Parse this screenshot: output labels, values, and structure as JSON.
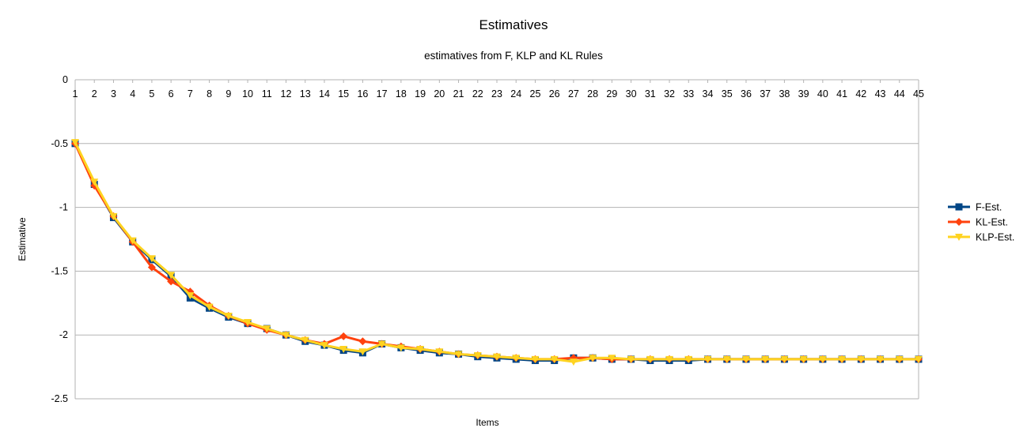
{
  "chart_data": {
    "type": "line",
    "title": "Estimatives",
    "subtitle": "estimatives from F, KLP and KL Rules",
    "xlabel": "Items",
    "ylabel": "Estimative",
    "ylim": [
      -2.5,
      0
    ],
    "yticks": [
      "0",
      "-0.5",
      "-1",
      "-1.5",
      "-2",
      "-2.5"
    ],
    "ytick_values": [
      0,
      -0.5,
      -1,
      -1.5,
      -2,
      -2.5
    ],
    "x": [
      1,
      2,
      3,
      4,
      5,
      6,
      7,
      8,
      9,
      10,
      11,
      12,
      13,
      14,
      15,
      16,
      17,
      18,
      19,
      20,
      21,
      22,
      23,
      24,
      25,
      26,
      27,
      28,
      29,
      30,
      31,
      32,
      33,
      34,
      35,
      36,
      37,
      38,
      39,
      40,
      41,
      42,
      43,
      44,
      45
    ],
    "grid": "horizontal",
    "legend_position": "right",
    "series": [
      {
        "name": "F-Est.",
        "color": "#004586",
        "marker": "square",
        "values": [
          -0.5,
          -0.82,
          -1.08,
          -1.27,
          -1.41,
          -1.54,
          -1.71,
          -1.79,
          -1.86,
          -1.91,
          -1.95,
          -2.0,
          -2.05,
          -2.08,
          -2.12,
          -2.14,
          -2.07,
          -2.1,
          -2.12,
          -2.14,
          -2.15,
          -2.17,
          -2.18,
          -2.19,
          -2.2,
          -2.2,
          -2.18,
          -2.18,
          -2.19,
          -2.19,
          -2.2,
          -2.2,
          -2.2,
          -2.19,
          -2.19,
          -2.19,
          -2.19,
          -2.19,
          -2.19,
          -2.19,
          -2.19,
          -2.19,
          -2.19,
          -2.19,
          -2.19
        ]
      },
      {
        "name": "KL-Est.",
        "color": "#ff420e",
        "marker": "diamond",
        "values": [
          -0.5,
          -0.83,
          -1.07,
          -1.27,
          -1.47,
          -1.58,
          -1.66,
          -1.77,
          -1.85,
          -1.91,
          -1.96,
          -2.0,
          -2.04,
          -2.07,
          -2.01,
          -2.05,
          -2.07,
          -2.09,
          -2.11,
          -2.13,
          -2.15,
          -2.16,
          -2.17,
          -2.18,
          -2.19,
          -2.19,
          -2.18,
          -2.18,
          -2.19,
          -2.19,
          -2.19,
          -2.19,
          -2.19,
          -2.19,
          -2.19,
          -2.19,
          -2.19,
          -2.19,
          -2.19,
          -2.19,
          -2.19,
          -2.19,
          -2.19,
          -2.19,
          -2.19
        ]
      },
      {
        "name": "KLP-Est.",
        "color": "#ffd320",
        "marker": "triangle-down",
        "values": [
          -0.49,
          -0.8,
          -1.07,
          -1.26,
          -1.4,
          -1.53,
          -1.69,
          -1.78,
          -1.85,
          -1.9,
          -1.95,
          -2.0,
          -2.04,
          -2.08,
          -2.11,
          -2.13,
          -2.07,
          -2.1,
          -2.11,
          -2.13,
          -2.15,
          -2.16,
          -2.17,
          -2.18,
          -2.19,
          -2.19,
          -2.21,
          -2.18,
          -2.18,
          -2.19,
          -2.19,
          -2.19,
          -2.19,
          -2.19,
          -2.19,
          -2.19,
          -2.19,
          -2.19,
          -2.19,
          -2.19,
          -2.19,
          -2.19,
          -2.19,
          -2.19,
          -2.19
        ]
      }
    ]
  }
}
